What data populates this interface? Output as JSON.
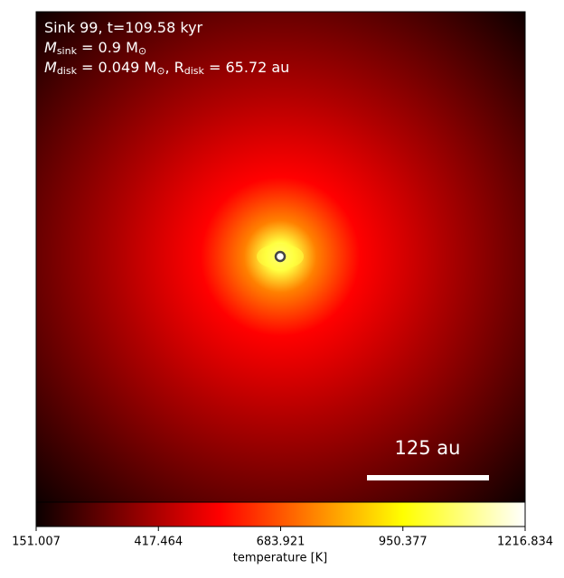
{
  "chart_data": {
    "type": "image",
    "colormap": "hot",
    "annotations": [
      [
        {
          "text": "Sink 99, t=109.58 kyr"
        }
      ],
      [
        {
          "text": "M"
        },
        {
          "sub": "sink"
        },
        {
          "text": " = 0.9 M"
        },
        {
          "sub": "⊙"
        }
      ],
      [
        {
          "text": "M"
        },
        {
          "sub": "disk"
        },
        {
          "text": " = 0.049 M"
        },
        {
          "sub": "⊙"
        },
        {
          "text": ", R"
        },
        {
          "sub": "disk"
        },
        {
          "text": " = 65.72 au"
        }
      ]
    ],
    "scale_bar_label": "125 au",
    "colorbar": {
      "label": "temperature [K]",
      "xlim": [
        151.007,
        1216.834
      ],
      "xticks": [
        151.007,
        417.464,
        683.921,
        950.377,
        1216.834
      ]
    }
  }
}
